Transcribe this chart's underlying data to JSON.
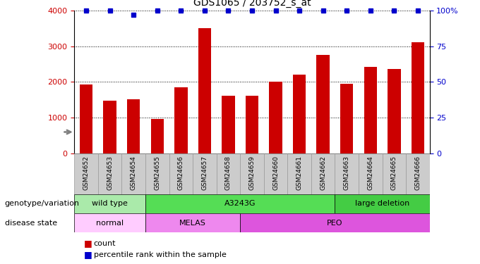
{
  "title": "GDS1065 / 203752_s_at",
  "samples": [
    "GSM24652",
    "GSM24653",
    "GSM24654",
    "GSM24655",
    "GSM24656",
    "GSM24657",
    "GSM24658",
    "GSM24659",
    "GSM24660",
    "GSM24661",
    "GSM24662",
    "GSM24663",
    "GSM24664",
    "GSM24665",
    "GSM24666"
  ],
  "counts": [
    1930,
    1470,
    1510,
    960,
    1860,
    3500,
    1610,
    1610,
    2000,
    2200,
    2760,
    1950,
    2430,
    2360,
    3110
  ],
  "percentile_ranks": [
    100,
    100,
    97,
    100,
    100,
    100,
    100,
    100,
    100,
    100,
    100,
    100,
    100,
    100,
    100
  ],
  "bar_color": "#cc0000",
  "percentile_color": "#0000cc",
  "ylim_left": [
    0,
    4000
  ],
  "ylim_right": [
    0,
    100
  ],
  "yticks_left": [
    0,
    1000,
    2000,
    3000,
    4000
  ],
  "yticks_right": [
    0,
    25,
    50,
    75,
    100
  ],
  "genotype_groups": [
    {
      "label": "wild type",
      "start": 0,
      "end": 3,
      "color": "#aaeaaa"
    },
    {
      "label": "A3243G",
      "start": 3,
      "end": 11,
      "color": "#55dd55"
    },
    {
      "label": "large deletion",
      "start": 11,
      "end": 15,
      "color": "#44cc44"
    }
  ],
  "disease_groups": [
    {
      "label": "normal",
      "start": 0,
      "end": 3,
      "color": "#ffccff"
    },
    {
      "label": "MELAS",
      "start": 3,
      "end": 7,
      "color": "#ee88ee"
    },
    {
      "label": "PEO",
      "start": 7,
      "end": 15,
      "color": "#dd55dd"
    }
  ],
  "genotype_label": "genotype/variation",
  "disease_label": "disease state",
  "legend_count_label": "count",
  "legend_percentile_label": "percentile rank within the sample",
  "tick_label_color_left": "#cc0000",
  "tick_label_color_right": "#0000cc",
  "sample_bg_color": "#cccccc",
  "sample_border_color": "#999999"
}
